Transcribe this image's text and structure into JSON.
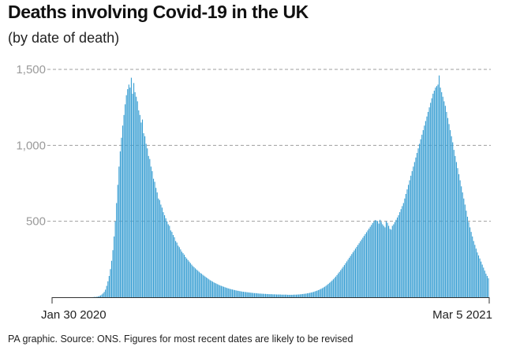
{
  "header": {
    "title": "Deaths involving Covid-19 in the UK",
    "subtitle": "(by date of death)"
  },
  "footer": {
    "source": "PA graphic. Source: ONS. Figures for most recent dates are likely to be revised"
  },
  "colors": {
    "bar": "#3a9fd3",
    "gridline": "#9e9e9e",
    "axis": "#333333",
    "tick_label_y": "#9a9a9a",
    "tick_label_x": "#222222"
  },
  "chart_data": {
    "type": "bar",
    "title": "Deaths involving Covid-19 in the UK",
    "subtitle": "(by date of death)",
    "xlabel": "",
    "ylabel": "",
    "x_start": "Jan 30 2020",
    "x_end": "Mar 5 2021",
    "ylim": [
      0,
      1500
    ],
    "y_ticks": [
      {
        "value": 500,
        "label": "500"
      },
      {
        "value": 1000,
        "label": "1,000"
      },
      {
        "value": 1500,
        "label": "1,500"
      }
    ],
    "x_tick_labels": [
      "Jan 30 2020",
      "Mar 5 2021"
    ],
    "grid": "horizontal dashed",
    "legend": "none",
    "series_note": "daily values, approximate, read from the chart",
    "values": [
      0,
      0,
      0,
      0,
      0,
      0,
      0,
      0,
      0,
      0,
      0,
      0,
      0,
      0,
      0,
      0,
      0,
      0,
      0,
      0,
      0,
      0,
      0,
      0,
      0,
      0,
      0,
      0,
      0,
      0,
      0,
      0,
      0,
      1,
      2,
      2,
      3,
      5,
      8,
      12,
      18,
      25,
      35,
      50,
      75,
      105,
      140,
      185,
      240,
      310,
      400,
      500,
      620,
      740,
      860,
      960,
      1050,
      1130,
      1200,
      1270,
      1330,
      1370,
      1400,
      1380,
      1445,
      1340,
      1410,
      1350,
      1320,
      1290,
      1230,
      1200,
      1150,
      1170,
      1080,
      1060,
      1010,
      980,
      930,
      910,
      860,
      830,
      780,
      760,
      720,
      690,
      650,
      640,
      610,
      590,
      560,
      540,
      520,
      500,
      480,
      470,
      440,
      430,
      410,
      395,
      370,
      360,
      340,
      330,
      315,
      300,
      290,
      280,
      265,
      255,
      245,
      235,
      225,
      215,
      205,
      198,
      190,
      182,
      175,
      168,
      160,
      155,
      148,
      142,
      136,
      130,
      124,
      118,
      112,
      108,
      103,
      98,
      94,
      90,
      86,
      82,
      78,
      75,
      72,
      69,
      66,
      63,
      60,
      58,
      55,
      53,
      51,
      49,
      47,
      45,
      43,
      42,
      40,
      39,
      37,
      36,
      35,
      34,
      33,
      32,
      31,
      30,
      29,
      28,
      27,
      27,
      26,
      25,
      24,
      24,
      23,
      23,
      22,
      22,
      21,
      21,
      20,
      20,
      20,
      19,
      19,
      19,
      18,
      18,
      18,
      18,
      17,
      17,
      17,
      17,
      17,
      16,
      16,
      16,
      16,
      16,
      17,
      17,
      17,
      18,
      18,
      19,
      20,
      21,
      22,
      23,
      24,
      26,
      27,
      29,
      31,
      33,
      35,
      38,
      41,
      44,
      47,
      51,
      55,
      59,
      64,
      69,
      75,
      81,
      88,
      95,
      102,
      110,
      118,
      127,
      136,
      146,
      157,
      167,
      178,
      189,
      200,
      212,
      224,
      236,
      248,
      260,
      272,
      284,
      296,
      308,
      320,
      332,
      344,
      356,
      368,
      380,
      392,
      404,
      416,
      428,
      440,
      452,
      464,
      476,
      488,
      498,
      508,
      505,
      502,
      485,
      510,
      495,
      480,
      470,
      460,
      500,
      490,
      470,
      450,
      445,
      470,
      480,
      495,
      510,
      525,
      540,
      560,
      580,
      600,
      620,
      650,
      680,
      710,
      740,
      770,
      800,
      830,
      860,
      890,
      920,
      950,
      980,
      1010,
      1040,
      1070,
      1100,
      1130,
      1160,
      1190,
      1220,
      1250,
      1280,
      1310,
      1340,
      1360,
      1380,
      1390,
      1400,
      1460,
      1380,
      1350,
      1320,
      1290,
      1260,
      1220,
      1180,
      1140,
      1100,
      1060,
      1020,
      970,
      930,
      890,
      850,
      810,
      770,
      730,
      690,
      650,
      610,
      570,
      530,
      495,
      460,
      430,
      400,
      370,
      345,
      320,
      295,
      275,
      255,
      235,
      215,
      195,
      175,
      155,
      140,
      125
    ]
  }
}
